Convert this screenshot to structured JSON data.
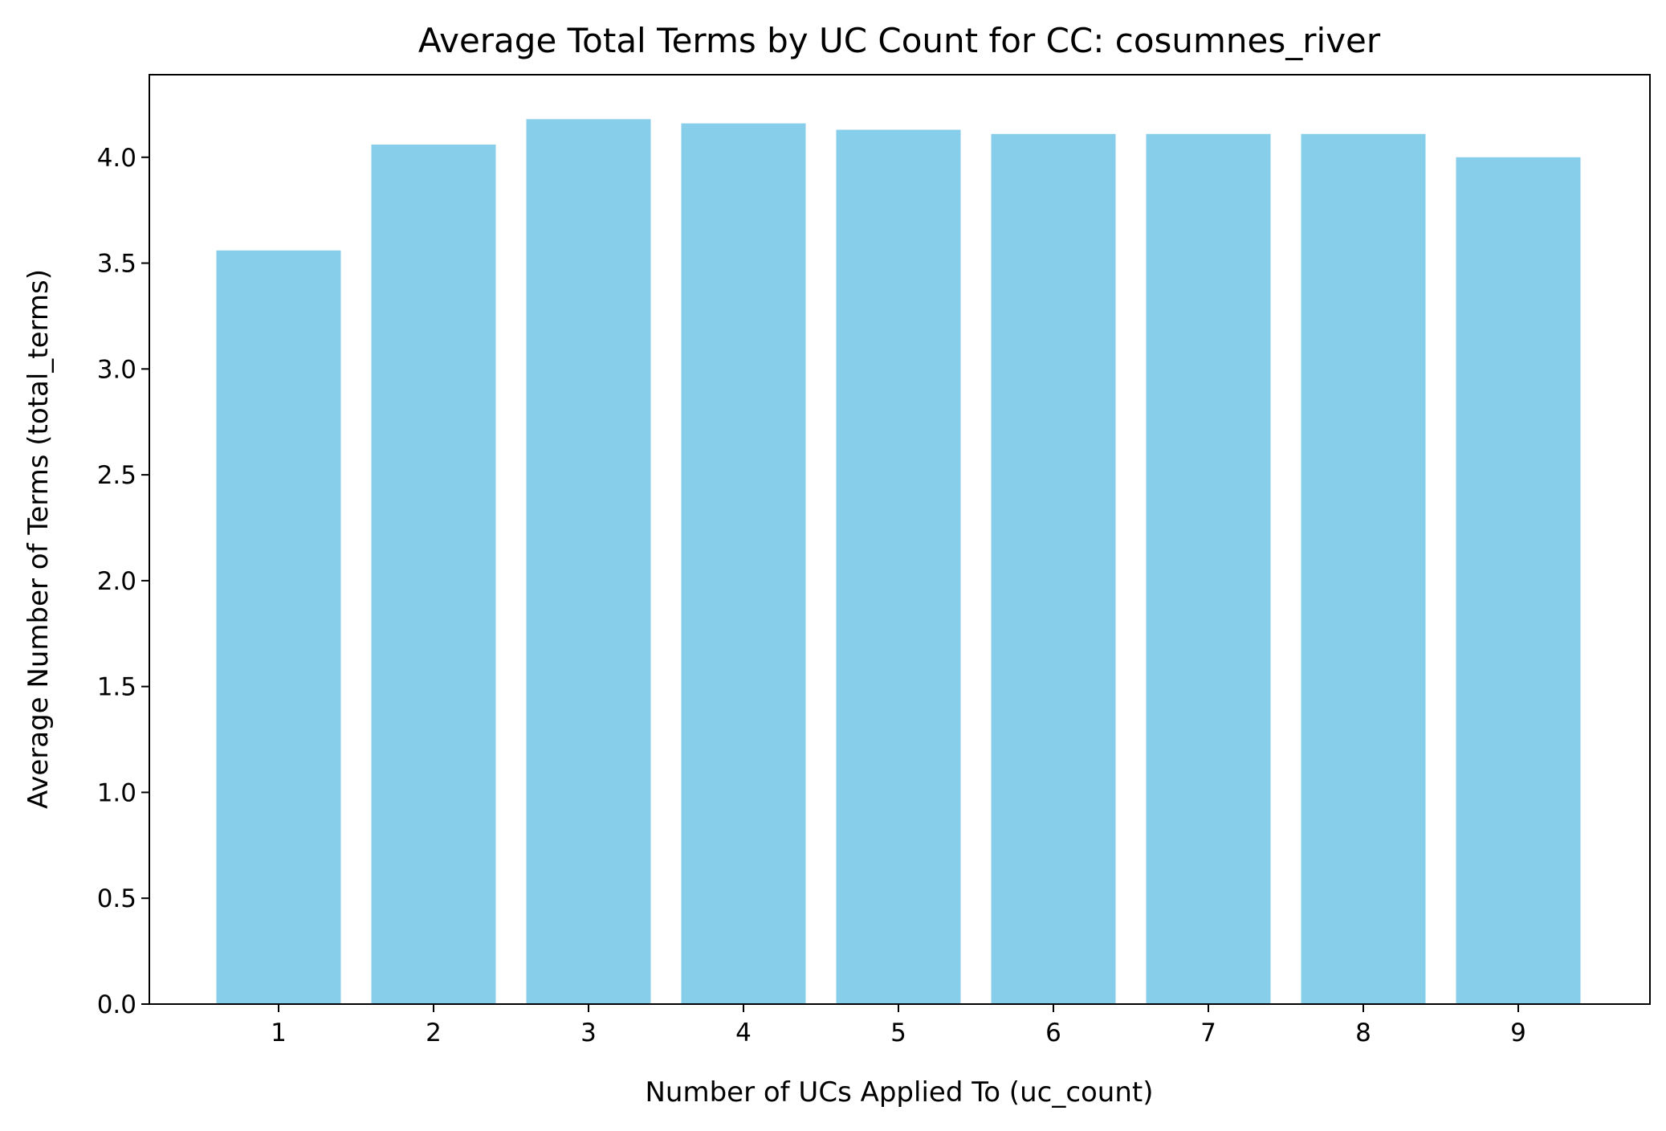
{
  "chart_data": {
    "type": "bar",
    "title": "Average Total Terms by UC Count for CC: cosumnes_river",
    "xlabel": "Number of UCs Applied To (uc_count)",
    "ylabel": "Average Number of Terms (total_terms)",
    "categories": [
      "1",
      "2",
      "3",
      "4",
      "5",
      "6",
      "7",
      "8",
      "9"
    ],
    "values": [
      3.56,
      4.06,
      4.18,
      4.16,
      4.13,
      4.11,
      4.11,
      4.11,
      4.0
    ],
    "ylim": [
      0,
      4.39
    ],
    "yticks": [
      "0.0",
      "0.5",
      "1.0",
      "1.5",
      "2.0",
      "2.5",
      "3.0",
      "3.5",
      "4.0"
    ],
    "bar_color": "#87CEEB",
    "grid": false,
    "legend": "none"
  }
}
